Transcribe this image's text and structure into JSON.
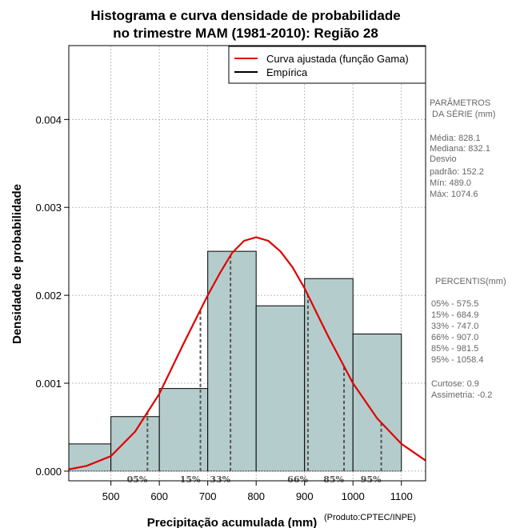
{
  "chart_data": {
    "type": "bar",
    "title": [
      "Histograma e curva densidade de probabilidade",
      "no trimestre MAM (1981-2010): Região 28"
    ],
    "xlabel": "Precipitação acumulada (mm)",
    "ylabel": "Densidade de probabilidade",
    "credit": "(Produto:CPTEC/INPE)",
    "xlim": [
      413,
      1150
    ],
    "ylim": [
      -0.00011,
      0.00484
    ],
    "xticks": [
      500,
      600,
      700,
      800,
      900,
      1000,
      1100
    ],
    "yticks": [
      0.0,
      0.001,
      0.002,
      0.003,
      0.004
    ],
    "ytick_labels": [
      "0.000",
      "0.001",
      "0.002",
      "0.003",
      "0.004"
    ],
    "grid": true,
    "colors": {
      "bars": "#b5cccc",
      "curve": "#e00000",
      "grid": "#aaaaaa",
      "percentile_lines": "#555555"
    },
    "histogram": [
      {
        "start": 400,
        "end": 500,
        "density": 0.00031
      },
      {
        "start": 500,
        "end": 600,
        "density": 0.00062
      },
      {
        "start": 600,
        "end": 700,
        "density": 0.00094
      },
      {
        "start": 700,
        "end": 800,
        "density": 0.0025
      },
      {
        "start": 800,
        "end": 900,
        "density": 0.00188
      },
      {
        "start": 900,
        "end": 1000,
        "density": 0.00219
      },
      {
        "start": 1000,
        "end": 1100,
        "density": 0.00156
      }
    ],
    "fitted_curve": {
      "name": "Curva ajustada (função Gama)",
      "x": [
        413,
        450,
        500,
        550,
        600,
        650,
        700,
        725,
        750,
        775,
        800,
        825,
        850,
        875,
        900,
        925,
        950,
        1000,
        1050,
        1100,
        1150
      ],
      "y": [
        2e-05,
        6e-05,
        0.00017,
        0.00045,
        0.00088,
        0.00145,
        0.002,
        0.00225,
        0.00248,
        0.00262,
        0.00266,
        0.00262,
        0.0025,
        0.00232,
        0.00208,
        0.0018,
        0.00152,
        0.001,
        0.0006,
        0.00031,
        0.00012
      ]
    },
    "percentile_markers": [
      {
        "label": "05%",
        "x": 575.5
      },
      {
        "label": "15%",
        "x": 684.9
      },
      {
        "label": "33%",
        "x": 747.0
      },
      {
        "label": "66%",
        "x": 907.0
      },
      {
        "label": "85%",
        "x": 981.5
      },
      {
        "label": "95%",
        "x": 1058.4
      }
    ],
    "legend": {
      "position": "top-right",
      "entries": [
        {
          "label": "Curva ajustada (função Gama)",
          "color": "#e00000"
        },
        {
          "label": "Empírica",
          "color": "#000000"
        }
      ]
    }
  },
  "side_panel": {
    "params_title": [
      "PARÂMETROS",
      "DA SÉRIE (mm)"
    ],
    "params": [
      "Média:  828.1",
      "Mediana:  832.1",
      "Desvio",
      "padrão:  152.2",
      "Mín:  489.0",
      "Máx:  1074.6"
    ],
    "percentis_title": "PERCENTIS(mm)",
    "percentis": [
      "05% -  575.5",
      "15% -  684.9",
      "33% -  747.0",
      "66% -  907.0",
      "85% -  981.5",
      "95% -  1058.4"
    ],
    "extra": [
      "Curtose:  0.9",
      "Assimetria:  -0.2"
    ]
  }
}
